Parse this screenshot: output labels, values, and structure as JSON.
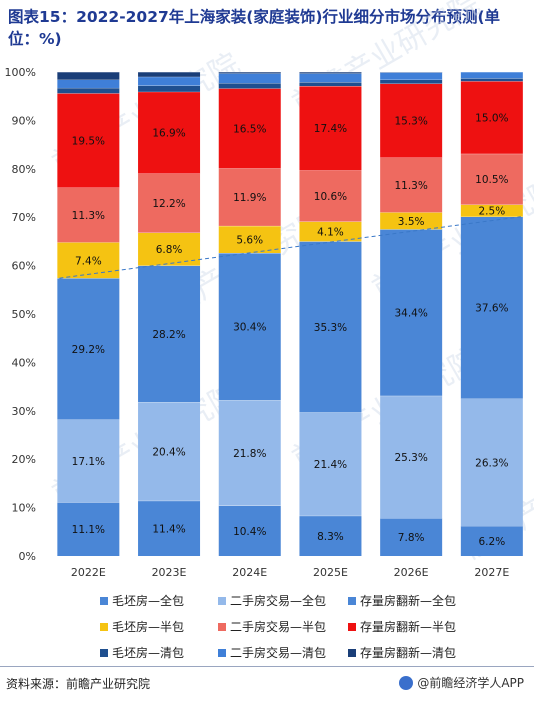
{
  "title": "图表15：2022-2027年上海家装(家庭装饰)行业细分市场分布预测(单位：%)",
  "source": "资料来源：前瞻产业研究院",
  "brand": "@前瞻经济学人APP",
  "watermark": "前瞻产业研究院",
  "chart_data": {
    "type": "bar",
    "stacked": true,
    "categories": [
      "2022E",
      "2023E",
      "2024E",
      "2025E",
      "2026E",
      "2027E"
    ],
    "ylim": [
      0,
      100
    ],
    "yticks": [
      "0%",
      "10%",
      "20%",
      "30%",
      "40%",
      "50%",
      "60%",
      "70%",
      "80%",
      "90%",
      "100%"
    ],
    "legend_position": "bottom",
    "series": [
      {
        "name": "毛坯房—全包",
        "color": "#4a86d6",
        "values": [
          11.1,
          11.4,
          10.4,
          8.3,
          7.8,
          6.2
        ],
        "labels": [
          "11.1%",
          "11.4%",
          "10.4%",
          "8.3%",
          "7.8%",
          "6.2%"
        ]
      },
      {
        "name": "二手房交易—全包",
        "color": "#94b9ea",
        "values": [
          17.1,
          20.4,
          21.8,
          21.4,
          25.3,
          26.3
        ],
        "labels": [
          "17.1%",
          "20.4%",
          "21.8%",
          "21.4%",
          "25.3%",
          "26.3%"
        ]
      },
      {
        "name": "存量房翻新—全包",
        "color": "#4a86d6",
        "values": [
          29.2,
          28.2,
          30.4,
          35.3,
          34.4,
          37.6
        ],
        "labels": [
          "29.2%",
          "28.2%",
          "30.4%",
          "35.3%",
          "34.4%",
          "37.6%"
        ]
      },
      {
        "name": "毛坯房—半包",
        "color": "#f5c312",
        "values": [
          7.4,
          6.8,
          5.6,
          4.1,
          3.5,
          2.5
        ],
        "labels": [
          "7.4%",
          "6.8%",
          "5.6%",
          "4.1%",
          "3.5%",
          "2.5%"
        ]
      },
      {
        "name": "二手房交易—半包",
        "color": "#ee6a60",
        "values": [
          11.3,
          12.2,
          11.9,
          10.6,
          11.3,
          10.5
        ],
        "labels": [
          "11.3%",
          "12.2%",
          "11.9%",
          "10.6%",
          "11.3%",
          "10.5%"
        ]
      },
      {
        "name": "存量房翻新—半包",
        "color": "#ee1111",
        "values": [
          19.5,
          16.9,
          16.5,
          17.4,
          15.3,
          15.0
        ],
        "labels": [
          "19.5%",
          "16.9%",
          "16.5%",
          "17.4%",
          "15.3%",
          "15.0%"
        ]
      },
      {
        "name": "毛坯房—清包",
        "color": "#1f4f8f",
        "values": [
          1.1,
          1.3,
          1.1,
          0.8,
          0.8,
          0.6
        ],
        "labels": []
      },
      {
        "name": "二手房交易—清包",
        "color": "#3f7fd8",
        "values": [
          1.7,
          1.8,
          2.0,
          1.8,
          1.5,
          1.3
        ],
        "labels": []
      },
      {
        "name": "存量房翻新—清包",
        "color": "#1a3e78",
        "values": [
          1.6,
          1.0,
          0.3,
          0.3,
          0.1,
          0.0
        ],
        "labels": []
      }
    ],
    "trendline": {
      "style": "dashed",
      "color": "#3a78c8"
    }
  }
}
